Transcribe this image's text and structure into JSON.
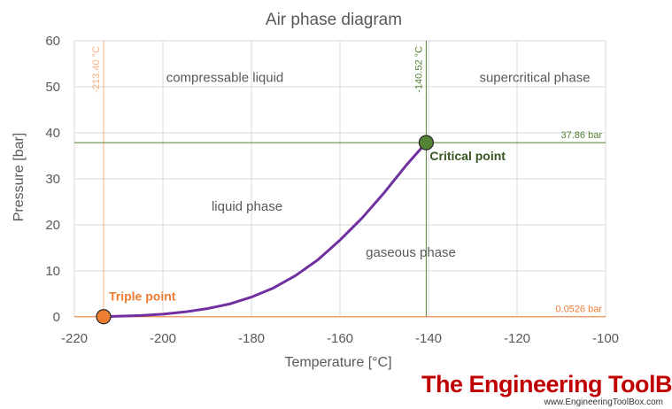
{
  "chart_data": {
    "type": "line",
    "title": "Air phase diagram",
    "xlabel": "Temperature [°C]",
    "ylabel": "Pressure [bar]",
    "xlim": [
      -220,
      -100
    ],
    "ylim": [
      0,
      60
    ],
    "xticks": [
      -220,
      -200,
      -180,
      -160,
      -140,
      -120,
      -100
    ],
    "yticks": [
      0,
      10,
      20,
      30,
      40,
      50,
      60
    ],
    "grid": "vertical and horizontal gridlines",
    "series": [
      {
        "color": "#7030a0",
        "x": [
          -213.4,
          -205,
          -200,
          -195,
          -190,
          -185,
          -180,
          -175,
          -170,
          -165,
          -160,
          -155,
          -150,
          -145,
          -140.52
        ],
        "y": [
          0.0526,
          0.3,
          0.6,
          1.1,
          1.8,
          2.8,
          4.3,
          6.3,
          9.0,
          12.4,
          16.7,
          21.5,
          27.0,
          33.0,
          37.86
        ]
      }
    ],
    "reference_lines": [
      {
        "orientation": "vertical",
        "x": -213.4,
        "label": "-213.40 °C",
        "color": "#f4b183"
      },
      {
        "orientation": "vertical",
        "x": -140.52,
        "label": "-140.52 °C",
        "color": "#548235"
      },
      {
        "orientation": "horizontal",
        "y": 37.86,
        "label": "37.86 bar",
        "color": "#548235"
      },
      {
        "orientation": "horizontal",
        "y": 0.0526,
        "label": "0.0526 bar",
        "color": "#ed7d31"
      }
    ],
    "points": [
      {
        "label": "Triple point",
        "x": -213.4,
        "y": 0.0526,
        "color": "#ed7d31"
      },
      {
        "label": "Critical point",
        "x": -140.52,
        "y": 37.86,
        "color": "#548235"
      }
    ],
    "regions": [
      {
        "label": "compressable liquid",
        "x": -186,
        "y": 52
      },
      {
        "label": "supercritical phase",
        "x": -116,
        "y": 52
      },
      {
        "label": "liquid phase",
        "x": -181,
        "y": 24
      },
      {
        "label": "gaseous phase",
        "x": -144,
        "y": 14
      }
    ]
  },
  "branding": {
    "name": "The Engineering ToolBox",
    "url": "www.EngineeringToolBox.com"
  }
}
